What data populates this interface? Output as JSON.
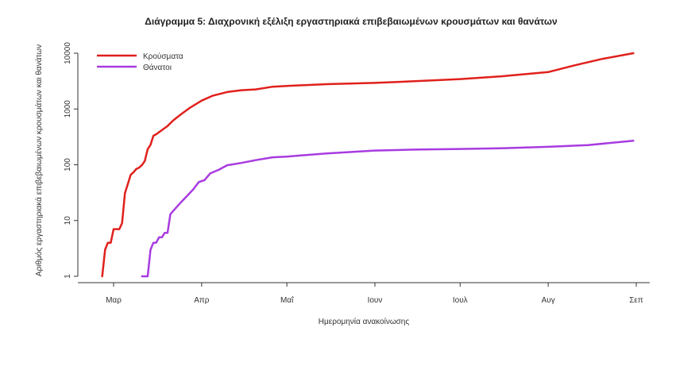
{
  "chart_data": {
    "type": "line",
    "title": "Διάγραμμα 5: Διαχρονική εξέλιξη εργαστηριακά επιβεβαιωμένων κρουσμάτων και θανάτων",
    "xlabel": "Ημερομηνία ανακοίνωσης",
    "ylabel": "Αριθμός εργαστηριακά επιβεβαιωμένων κρουσμάτων και θανάτων",
    "y_scale": "log",
    "ylim": [
      1,
      10000
    ],
    "xlim": [
      "2020-02-21",
      "2020-09-01"
    ],
    "grid": false,
    "legend_position": "top-left",
    "x_ticks": [
      {
        "label": "Μαρ",
        "date": "2020-03-01"
      },
      {
        "label": "Απρ",
        "date": "2020-04-01"
      },
      {
        "label": "Μαΐ",
        "date": "2020-05-01"
      },
      {
        "label": "Ιουν",
        "date": "2020-06-01"
      },
      {
        "label": "Ιουλ",
        "date": "2020-07-01"
      },
      {
        "label": "Αυγ",
        "date": "2020-08-01"
      },
      {
        "label": "Σεπ",
        "date": "2020-09-01"
      }
    ],
    "y_ticks": [
      {
        "label": "1",
        "value": 1
      },
      {
        "label": "10",
        "value": 10
      },
      {
        "label": "100",
        "value": 100
      },
      {
        "label": "1000",
        "value": 1000
      },
      {
        "label": "10000",
        "value": 10000
      }
    ],
    "series": [
      {
        "name": "Κρούσματα",
        "color": "#e0201c",
        "points": [
          [
            "2020-02-26",
            1
          ],
          [
            "2020-02-27",
            3
          ],
          [
            "2020-02-28",
            4
          ],
          [
            "2020-02-29",
            4
          ],
          [
            "2020-03-01",
            7
          ],
          [
            "2020-03-03",
            7
          ],
          [
            "2020-03-04",
            9
          ],
          [
            "2020-03-05",
            31
          ],
          [
            "2020-03-06",
            45
          ],
          [
            "2020-03-07",
            66
          ],
          [
            "2020-03-08",
            73
          ],
          [
            "2020-03-09",
            84
          ],
          [
            "2020-03-10",
            89
          ],
          [
            "2020-03-11",
            99
          ],
          [
            "2020-03-12",
            117
          ],
          [
            "2020-03-13",
            190
          ],
          [
            "2020-03-14",
            228
          ],
          [
            "2020-03-15",
            331
          ],
          [
            "2020-03-16",
            352
          ],
          [
            "2020-03-18",
            418
          ],
          [
            "2020-03-20",
            495
          ],
          [
            "2020-03-22",
            624
          ],
          [
            "2020-03-25",
            821
          ],
          [
            "2020-03-28",
            1061
          ],
          [
            "2020-04-01",
            1415
          ],
          [
            "2020-04-05",
            1735
          ],
          [
            "2020-04-10",
            2011
          ],
          [
            "2020-04-15",
            2170
          ],
          [
            "2020-04-20",
            2245
          ],
          [
            "2020-04-26",
            2506
          ],
          [
            "2020-05-01",
            2591
          ],
          [
            "2020-05-15",
            2788
          ],
          [
            "2020-06-01",
            2937
          ],
          [
            "2020-06-15",
            3148
          ],
          [
            "2020-07-01",
            3432
          ],
          [
            "2020-07-15",
            3826
          ],
          [
            "2020-08-01",
            4587
          ],
          [
            "2020-08-10",
            6000
          ],
          [
            "2020-08-20",
            7900
          ],
          [
            "2020-08-31",
            10000
          ]
        ]
      },
      {
        "name": "Θάνατοι",
        "color": "#a83be0",
        "points": [
          [
            "2020-03-11",
            1
          ],
          [
            "2020-03-13",
            1
          ],
          [
            "2020-03-14",
            3
          ],
          [
            "2020-03-15",
            4
          ],
          [
            "2020-03-16",
            4
          ],
          [
            "2020-03-17",
            5
          ],
          [
            "2020-03-18",
            5
          ],
          [
            "2020-03-19",
            6
          ],
          [
            "2020-03-20",
            6
          ],
          [
            "2020-03-21",
            13
          ],
          [
            "2020-03-23",
            17
          ],
          [
            "2020-03-25",
            22
          ],
          [
            "2020-03-27",
            28
          ],
          [
            "2020-03-29",
            36
          ],
          [
            "2020-03-31",
            49
          ],
          [
            "2020-04-02",
            53
          ],
          [
            "2020-04-04",
            70
          ],
          [
            "2020-04-07",
            81
          ],
          [
            "2020-04-10",
            98
          ],
          [
            "2020-04-15",
            108
          ],
          [
            "2020-04-20",
            121
          ],
          [
            "2020-04-26",
            136
          ],
          [
            "2020-05-01",
            140
          ],
          [
            "2020-05-15",
            160
          ],
          [
            "2020-06-01",
            180
          ],
          [
            "2020-06-15",
            187
          ],
          [
            "2020-07-01",
            192
          ],
          [
            "2020-07-15",
            197
          ],
          [
            "2020-08-01",
            210
          ],
          [
            "2020-08-15",
            225
          ],
          [
            "2020-08-31",
            270
          ]
        ]
      }
    ]
  }
}
